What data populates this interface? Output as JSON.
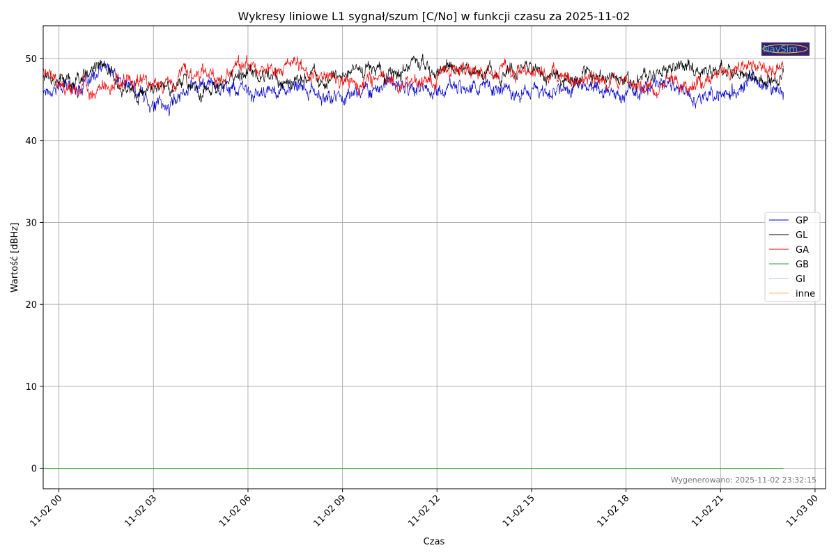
{
  "chart_data": {
    "type": "line",
    "title": "Wykresy liniowe L1 sygnał/szum [C/No] w funkcji czasu za 2025-11-02",
    "xlabel": "Czas",
    "ylabel": "Wartość [dBHz]",
    "x_range": [
      "2025-11-01 23:30",
      "2025-11-03 00:20"
    ],
    "ylim": [
      -2.5,
      54
    ],
    "x_ticks": [
      "11-02 00",
      "11-02 03",
      "11-02 06",
      "11-02 09",
      "11-02 12",
      "11-02 15",
      "11-02 18",
      "11-02 21",
      "11-03 00"
    ],
    "y_ticks": [
      "0",
      "10",
      "20",
      "30",
      "40",
      "50"
    ],
    "grid": true,
    "legend_position": "center-right",
    "footnote": "Wygenerowano: 2025-11-02 23:32:15",
    "logo_text": "NavSim",
    "series": [
      {
        "name": "GP",
        "color": "#0000cc",
        "x_hours": [
          -0.5,
          0.0,
          0.5,
          1.0,
          1.5,
          2.0,
          2.5,
          3.0,
          3.5,
          4.0,
          4.5,
          5.0,
          5.5,
          6.0,
          6.5,
          7.0,
          7.5,
          8.0,
          8.5,
          9.0,
          9.5,
          10.0,
          10.5,
          11.0,
          11.5,
          12.0,
          12.5,
          13.0,
          13.5,
          14.0,
          14.5,
          15.0,
          15.5,
          16.0,
          16.5,
          17.0,
          17.5,
          18.0,
          18.5,
          19.0,
          19.5,
          20.0,
          20.5,
          21.0,
          21.5,
          22.0,
          22.5,
          23.0
        ],
        "values": [
          46.2,
          46.6,
          46.5,
          47.0,
          49.0,
          47.0,
          46.0,
          44.5,
          44.0,
          46.5,
          47.0,
          46.8,
          46.5,
          45.8,
          45.5,
          46.5,
          46.2,
          46.0,
          45.0,
          45.5,
          46.0,
          46.5,
          46.8,
          46.5,
          46.2,
          46.0,
          46.5,
          47.0,
          46.2,
          46.5,
          46.0,
          46.2,
          45.8,
          46.5,
          46.8,
          46.5,
          46.0,
          45.5,
          46.2,
          46.8,
          47.0,
          46.0,
          45.2,
          45.5,
          46.0,
          47.0,
          46.5,
          46.0
        ]
      },
      {
        "name": "GL",
        "color": "#000000",
        "x_hours": [
          -0.5,
          0.0,
          0.5,
          1.0,
          1.5,
          2.0,
          2.5,
          3.0,
          3.5,
          4.0,
          4.5,
          5.0,
          5.5,
          6.0,
          6.5,
          7.0,
          7.5,
          8.0,
          8.5,
          9.0,
          9.5,
          10.0,
          10.5,
          11.0,
          11.5,
          12.0,
          12.5,
          13.0,
          13.5,
          14.0,
          14.5,
          15.0,
          15.5,
          16.0,
          16.5,
          17.0,
          17.5,
          18.0,
          18.5,
          19.0,
          19.5,
          20.0,
          20.5,
          21.0,
          21.5,
          22.0,
          22.5,
          23.0
        ],
        "values": [
          48.0,
          47.5,
          47.0,
          48.5,
          49.0,
          47.0,
          45.5,
          46.0,
          46.5,
          47.5,
          46.0,
          47.0,
          47.0,
          48.5,
          48.0,
          47.0,
          47.5,
          47.8,
          47.5,
          48.0,
          48.5,
          48.8,
          48.0,
          48.5,
          49.5,
          48.5,
          49.0,
          48.8,
          49.0,
          48.0,
          48.5,
          49.0,
          47.5,
          47.8,
          47.5,
          48.0,
          47.8,
          47.5,
          48.0,
          48.2,
          48.5,
          49.0,
          48.5,
          49.0,
          48.0,
          47.5,
          47.0,
          48.0
        ]
      },
      {
        "name": "GA",
        "color": "#ee0000",
        "x_hours": [
          -0.5,
          0.0,
          0.5,
          1.0,
          1.5,
          2.0,
          2.5,
          3.0,
          3.5,
          4.0,
          4.5,
          5.0,
          5.5,
          6.0,
          6.5,
          7.0,
          7.5,
          8.0,
          8.5,
          9.0,
          9.5,
          10.0,
          10.5,
          11.0,
          11.5,
          12.0,
          12.5,
          13.0,
          13.5,
          14.0,
          14.5,
          15.0,
          15.5,
          16.0,
          16.5,
          17.0,
          17.5,
          18.0,
          18.5,
          19.0,
          19.5,
          20.0,
          20.5,
          21.0,
          21.5,
          22.0,
          22.5,
          23.0
        ],
        "values": [
          48.5,
          47.0,
          46.0,
          46.5,
          46.0,
          47.0,
          47.0,
          47.2,
          46.5,
          48.0,
          48.5,
          48.0,
          48.5,
          49.5,
          49.0,
          48.5,
          48.8,
          48.5,
          47.5,
          47.5,
          47.0,
          47.5,
          47.2,
          47.0,
          47.0,
          48.0,
          48.5,
          49.0,
          48.5,
          48.8,
          48.5,
          48.0,
          48.5,
          48.0,
          47.5,
          47.5,
          47.0,
          47.0,
          46.5,
          46.0,
          47.5,
          46.5,
          47.0,
          49.0,
          48.5,
          48.5,
          49.0,
          49.5
        ]
      },
      {
        "name": "GB",
        "color": "#2ca02c",
        "x_hours": [
          -0.5,
          23.0
        ],
        "values": [
          0,
          0
        ]
      },
      {
        "name": "GI",
        "color": "#aec7e8",
        "x_hours": [
          -0.5,
          23.0
        ],
        "values": [
          0,
          0
        ]
      },
      {
        "name": "inne",
        "color": "#ffbb78",
        "x_hours": [
          -0.5,
          23.0
        ],
        "values": [
          0,
          0
        ]
      }
    ]
  }
}
